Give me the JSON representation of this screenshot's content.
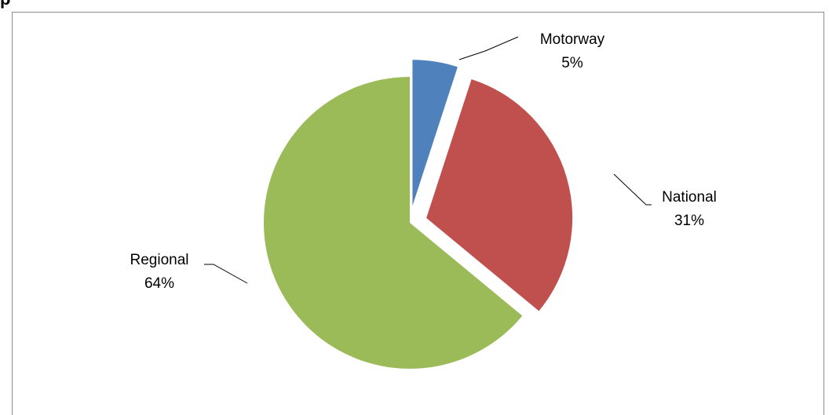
{
  "title_fragment": "p",
  "chart_data": {
    "type": "pie",
    "title": "",
    "slices": [
      {
        "name": "Motorway",
        "percent": 5,
        "label": "5%",
        "color": "#4f81bd",
        "exploded": true
      },
      {
        "name": "National",
        "percent": 31,
        "label": "31%",
        "color": "#c0504d",
        "exploded": true
      },
      {
        "name": "Regional",
        "percent": 64,
        "label": "64%",
        "color": "#9bbb59",
        "exploded": false
      }
    ],
    "start_angle": "12 o'clock, clockwise",
    "data_labels": "category and percentage, with leader lines",
    "legend": "none"
  }
}
